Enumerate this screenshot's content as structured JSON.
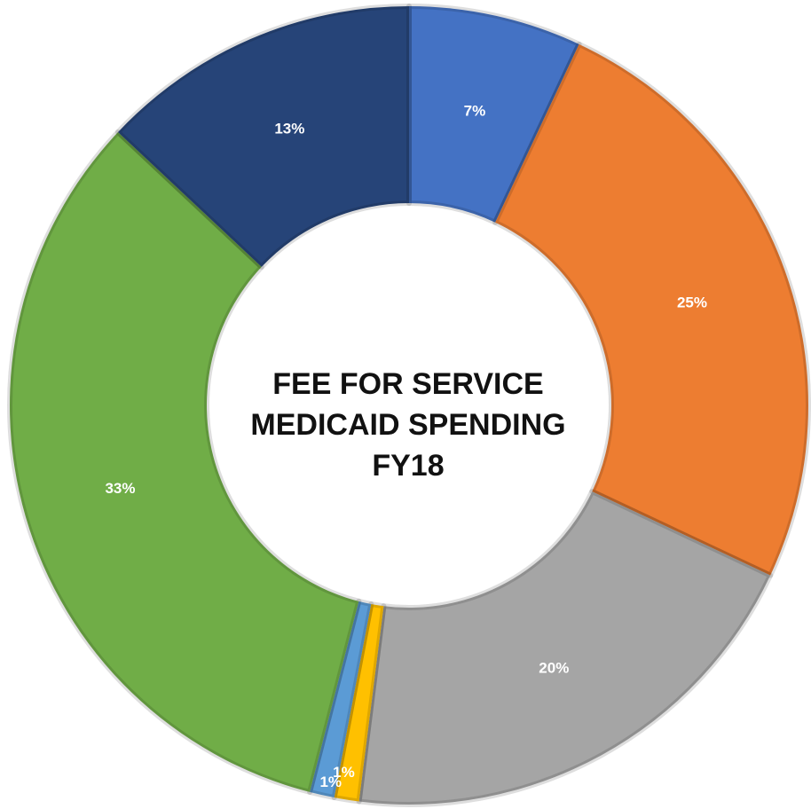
{
  "chart_data": {
    "type": "donut",
    "title": "FEE FOR SERVICE MEDICAID SPENDING FY18",
    "values": [
      7,
      25,
      20,
      1,
      1,
      33,
      13
    ],
    "value_labels": [
      "7%",
      "25%",
      "20%",
      "1%",
      "1%",
      "33%",
      "13%"
    ],
    "colors": [
      "#4472c4",
      "#ed7d31",
      "#a5a5a5",
      "#ffc000",
      "#5b9bd5",
      "#70ad47",
      "#264478"
    ]
  }
}
